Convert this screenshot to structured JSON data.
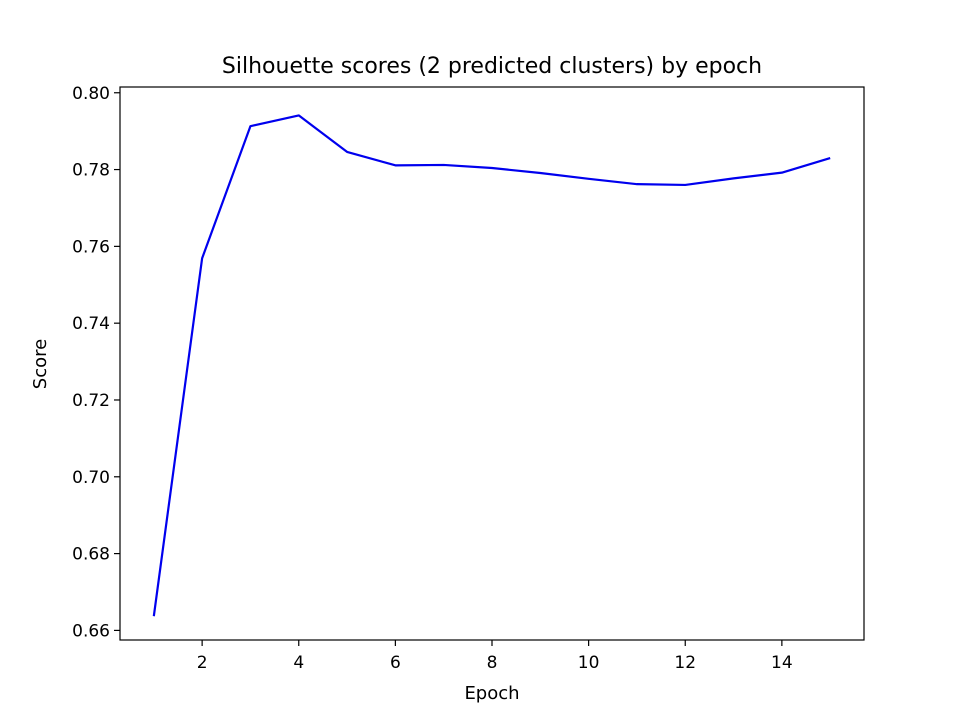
{
  "chart_data": {
    "type": "line",
    "title": "Silhouette scores (2 predicted clusters) by epoch",
    "xlabel": "Epoch",
    "ylabel": "Score",
    "xlim": [
      0.3,
      15.7
    ],
    "ylim": [
      0.6575,
      0.8015
    ],
    "x_ticks": [
      2,
      4,
      6,
      8,
      10,
      12,
      14
    ],
    "y_ticks": [
      0.66,
      0.68,
      0.7,
      0.72,
      0.74,
      0.76,
      0.78,
      0.8
    ],
    "y_tick_labels": [
      "0.66",
      "0.68",
      "0.70",
      "0.72",
      "0.74",
      "0.76",
      "0.78",
      "0.80"
    ],
    "grid": false,
    "series": [
      {
        "color": "#0000ee",
        "x": [
          1,
          2,
          3,
          4,
          5,
          6,
          7,
          8,
          9,
          10,
          11,
          12,
          13,
          14,
          15
        ],
        "values": [
          0.6637,
          0.7569,
          0.7913,
          0.7941,
          0.7846,
          0.7811,
          0.7812,
          0.7804,
          0.7791,
          0.7776,
          0.7762,
          0.776,
          0.7777,
          0.7792,
          0.783
        ]
      }
    ]
  }
}
